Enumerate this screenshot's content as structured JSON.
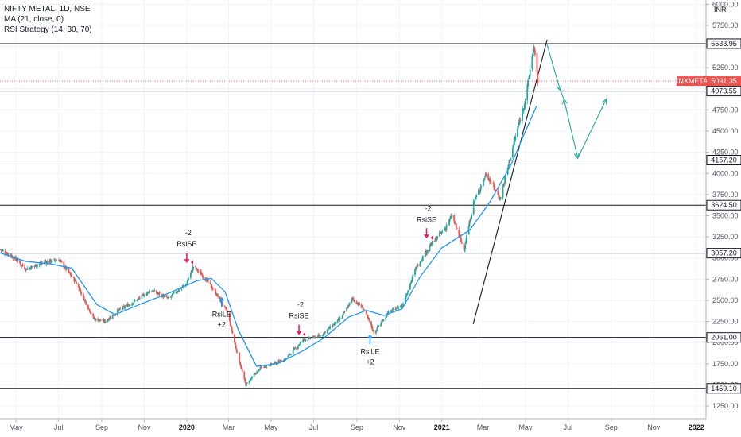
{
  "header": {
    "title": "NIFTY METAL, 1D, NSE",
    "ma_label": "MA (21, close, 0)",
    "rsi_label": "RSI Strategy (14, 30, 70)"
  },
  "currency": "INR",
  "colors": {
    "up": "#26a69a",
    "down": "#ef5350",
    "ma": "#2196f3",
    "level": "#131722",
    "projection": "#26a69a",
    "current": "#ef5350",
    "signal_short": "#e91e63",
    "signal_long": "#2196f3"
  },
  "chart_data": {
    "type": "candlestick",
    "y_axis": {
      "min": 1100,
      "max": 6050,
      "ticks": [
        "1250.00",
        "1500.00",
        "1750.00",
        "2000.00",
        "2250.00",
        "2500.00",
        "2750.00",
        "3000.00",
        "3250.00",
        "3500.00",
        "3750.00",
        "4000.00",
        "4250.00",
        "4500.00",
        "4750.00",
        "5000.00",
        "5250.00",
        "5500.00",
        "5750.00",
        "6000.00"
      ]
    },
    "x_axis": {
      "start": "2019-04-08",
      "end": "2022-01-15",
      "ticks": [
        {
          "label": "May",
          "date": "2019-05-01",
          "bold": false
        },
        {
          "label": "Jul",
          "date": "2019-07-01",
          "bold": false
        },
        {
          "label": "Sep",
          "date": "2019-09-01",
          "bold": false
        },
        {
          "label": "Nov",
          "date": "2019-11-01",
          "bold": false
        },
        {
          "label": "2020",
          "date": "2020-01-01",
          "bold": true
        },
        {
          "label": "Mar",
          "date": "2020-03-01",
          "bold": false
        },
        {
          "label": "May",
          "date": "2020-05-01",
          "bold": false
        },
        {
          "label": "Jul",
          "date": "2020-07-01",
          "bold": false
        },
        {
          "label": "Sep",
          "date": "2020-09-01",
          "bold": false
        },
        {
          "label": "Nov",
          "date": "2020-11-01",
          "bold": false
        },
        {
          "label": "2021",
          "date": "2021-01-01",
          "bold": true
        },
        {
          "label": "Mar",
          "date": "2021-03-01",
          "bold": false
        },
        {
          "label": "May",
          "date": "2021-05-01",
          "bold": false
        },
        {
          "label": "Jul",
          "date": "2021-07-01",
          "bold": false
        },
        {
          "label": "Sep",
          "date": "2021-09-01",
          "bold": false
        },
        {
          "label": "Nov",
          "date": "2021-11-01",
          "bold": false
        },
        {
          "label": "2022",
          "date": "2022-01-01",
          "bold": true
        }
      ]
    },
    "price_path": [
      [
        "2019-04-08",
        3100
      ],
      [
        "2019-04-25",
        3020
      ],
      [
        "2019-05-15",
        2870
      ],
      [
        "2019-06-10",
        2950
      ],
      [
        "2019-07-01",
        2980
      ],
      [
        "2019-07-25",
        2720
      ],
      [
        "2019-08-20",
        2280
      ],
      [
        "2019-09-05",
        2250
      ],
      [
        "2019-09-25",
        2380
      ],
      [
        "2019-10-20",
        2500
      ],
      [
        "2019-11-10",
        2620
      ],
      [
        "2019-12-05",
        2520
      ],
      [
        "2019-12-31",
        2700
      ],
      [
        "2020-01-10",
        2900
      ],
      [
        "2020-01-25",
        2780
      ],
      [
        "2020-02-10",
        2600
      ],
      [
        "2020-02-28",
        2350
      ],
      [
        "2020-03-12",
        1900
      ],
      [
        "2020-03-25",
        1500
      ],
      [
        "2020-04-15",
        1700
      ],
      [
        "2020-05-20",
        1800
      ],
      [
        "2020-06-15",
        2030
      ],
      [
        "2020-07-10",
        2080
      ],
      [
        "2020-08-10",
        2300
      ],
      [
        "2020-08-25",
        2520
      ],
      [
        "2020-09-10",
        2400
      ],
      [
        "2020-09-25",
        2120
      ],
      [
        "2020-10-15",
        2350
      ],
      [
        "2020-11-05",
        2450
      ],
      [
        "2020-11-25",
        2900
      ],
      [
        "2020-12-15",
        3150
      ],
      [
        "2021-01-05",
        3350
      ],
      [
        "2021-01-15",
        3500
      ],
      [
        "2021-02-01",
        3100
      ],
      [
        "2021-02-15",
        3650
      ],
      [
        "2021-03-05",
        4000
      ],
      [
        "2021-03-25",
        3700
      ],
      [
        "2021-04-15",
        4400
      ],
      [
        "2021-05-01",
        4900
      ],
      [
        "2021-05-12",
        5500
      ],
      [
        "2021-05-18",
        5091
      ]
    ],
    "ma_path": [
      [
        "2019-04-08",
        3060
      ],
      [
        "2019-05-15",
        2960
      ],
      [
        "2019-06-20",
        2930
      ],
      [
        "2019-07-20",
        2880
      ],
      [
        "2019-08-25",
        2450
      ],
      [
        "2019-09-20",
        2330
      ],
      [
        "2019-10-25",
        2450
      ],
      [
        "2019-12-05",
        2580
      ],
      [
        "2020-01-15",
        2730
      ],
      [
        "2020-02-05",
        2760
      ],
      [
        "2020-02-25",
        2600
      ],
      [
        "2020-03-15",
        2150
      ],
      [
        "2020-04-10",
        1720
      ],
      [
        "2020-05-10",
        1750
      ],
      [
        "2020-06-15",
        1900
      ],
      [
        "2020-07-15",
        2050
      ],
      [
        "2020-08-20",
        2300
      ],
      [
        "2020-09-15",
        2380
      ],
      [
        "2020-10-10",
        2320
      ],
      [
        "2020-11-05",
        2400
      ],
      [
        "2020-12-01",
        2780
      ],
      [
        "2021-01-01",
        3120
      ],
      [
        "2021-02-10",
        3330
      ],
      [
        "2021-03-10",
        3650
      ],
      [
        "2021-04-10",
        4100
      ],
      [
        "2021-05-01",
        4500
      ],
      [
        "2021-05-17",
        4800
      ]
    ],
    "levels": [
      {
        "label": "5533.95",
        "value": 5533.95
      },
      {
        "label": "4973.55",
        "value": 4973.55
      },
      {
        "label": "4157.20",
        "value": 4157.2
      },
      {
        "label": "3624.50",
        "value": 3624.5
      },
      {
        "label": "3057.20",
        "value": 3057.2
      },
      {
        "label": "2061.00",
        "value": 2061.0
      },
      {
        "label": "1459.10",
        "value": 1459.1
      }
    ],
    "current_price": {
      "symbol": "CNXMETAL",
      "label": "5091.35",
      "value": 5091.35
    },
    "signals": [
      {
        "type": "short",
        "top": "-2",
        "bottom": "RsiSE",
        "date": "2020-01-01",
        "value": 2930
      },
      {
        "type": "long",
        "top": "RsiLE",
        "bottom": "+2",
        "date": "2020-02-20",
        "value": 2550
      },
      {
        "type": "short",
        "top": "-2",
        "bottom": "RsiSE",
        "date": "2020-06-10",
        "value": 2080
      },
      {
        "type": "long",
        "top": "RsiLE",
        "bottom": "+2",
        "date": "2020-09-20",
        "value": 2110
      },
      {
        "type": "short",
        "top": "-2",
        "bottom": "RsiSE",
        "date": "2020-12-10",
        "value": 3220
      }
    ],
    "trendline": [
      [
        "2021-02-15",
        2220
      ],
      [
        "2021-06-01",
        5580
      ]
    ],
    "projection": [
      [
        "2021-06-01",
        5520
      ],
      [
        "2021-06-20",
        4980
      ],
      [
        "2021-06-25",
        4880
      ],
      [
        "2021-07-15",
        4180
      ],
      [
        "2021-08-25",
        4880
      ]
    ]
  }
}
